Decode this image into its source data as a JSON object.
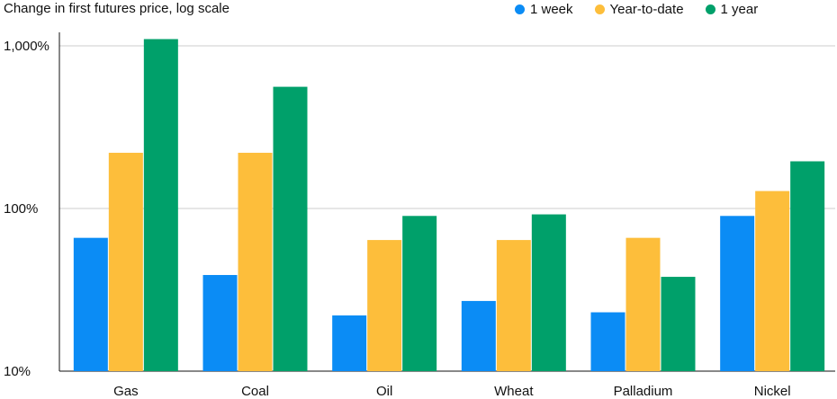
{
  "chart_data": {
    "type": "bar",
    "title": "Change in first futures price, log scale",
    "categories": [
      "Gas",
      "Coal",
      "Oil",
      "Wheat",
      "Palladium",
      "Nickel"
    ],
    "series": [
      {
        "name": "1 week",
        "color": "#0b8cf5",
        "values": [
          66,
          39,
          22,
          27,
          23,
          90
        ]
      },
      {
        "name": "Year-to-date",
        "color": "#fdbe3b",
        "values": [
          220,
          220,
          64,
          64,
          66,
          128
        ]
      },
      {
        "name": "1 year",
        "color": "#00a06a",
        "values": [
          1100,
          560,
          90,
          92,
          38,
          195
        ]
      }
    ],
    "yscale": "log",
    "ylim": [
      10,
      1100
    ],
    "yticks": [
      {
        "value": 10,
        "label": "10%"
      },
      {
        "value": 100,
        "label": "100%"
      },
      {
        "value": 1000,
        "label": "1,000%"
      }
    ],
    "grid": true,
    "legend_position": "top-right"
  }
}
